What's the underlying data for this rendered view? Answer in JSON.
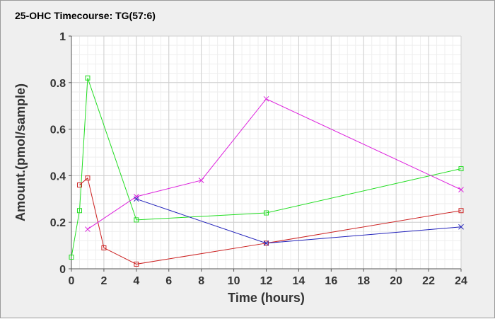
{
  "chart_data": {
    "type": "line",
    "title": "25-OHC Timecourse: TG(57:6)",
    "xlabel": "Time (hours)",
    "ylabel": "Amount.(pmol/sample)",
    "xlim": [
      0,
      24
    ],
    "ylim": [
      0,
      1
    ],
    "x_ticks": [
      0,
      2,
      4,
      6,
      8,
      10,
      12,
      14,
      16,
      18,
      20,
      22,
      24
    ],
    "y_ticks": [
      0,
      0.2,
      0.4,
      0.6,
      0.8,
      1
    ],
    "y_tick_labels": [
      "0",
      "0.2",
      "0.4",
      "0.6",
      "0.8",
      "1"
    ],
    "grid": true,
    "legend": "none",
    "series": [
      {
        "color": "#22dd22",
        "marker": "square",
        "points": [
          [
            0,
            0.05
          ],
          [
            0.5,
            0.25
          ],
          [
            1,
            0.82
          ],
          [
            4,
            0.21
          ],
          [
            12,
            0.24
          ],
          [
            24,
            0.43
          ]
        ]
      },
      {
        "color": "#cc2222",
        "marker": "square",
        "points": [
          [
            0.5,
            0.36
          ],
          [
            1,
            0.39
          ],
          [
            2,
            0.09
          ],
          [
            4,
            0.02
          ],
          [
            12,
            0.11
          ],
          [
            24,
            0.25
          ]
        ]
      },
      {
        "color": "#dd22dd",
        "marker": "x",
        "points": [
          [
            1,
            0.17
          ],
          [
            4,
            0.31
          ],
          [
            8,
            0.38
          ],
          [
            12,
            0.73
          ],
          [
            24,
            0.34
          ]
        ]
      },
      {
        "color": "#2222bb",
        "marker": "x",
        "points": [
          [
            4,
            0.3
          ],
          [
            12,
            0.11
          ],
          [
            24,
            0.18
          ]
        ]
      }
    ]
  }
}
